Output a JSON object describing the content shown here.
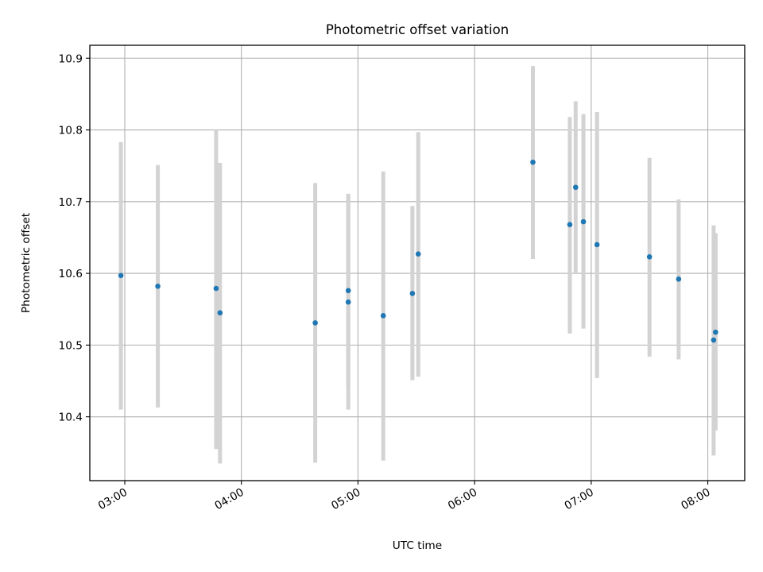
{
  "chart_data": {
    "type": "scatter",
    "title": "Photometric offset variation",
    "xlabel": "UTC time",
    "ylabel": "Photometric offset",
    "grid": true,
    "x_unit": "UTC time of day (HH:MM)",
    "xlim": [
      "02:42",
      "08:19"
    ],
    "ylim": [
      10.311,
      10.918
    ],
    "x_ticks": [
      "03:00",
      "04:00",
      "05:00",
      "06:00",
      "07:00",
      "08:00"
    ],
    "y_ticks": [
      10.4,
      10.5,
      10.6,
      10.7,
      10.8,
      10.9
    ],
    "y_tick_labels": [
      "10.4",
      "10.5",
      "10.6",
      "10.7",
      "10.8",
      "10.9"
    ],
    "marker_color": "#1f77b4",
    "errorbar_color": "#d3d3d3",
    "series": [
      {
        "points": [
          {
            "x": "02:58",
            "y": 10.597,
            "y_low": 10.41,
            "y_high": 10.783
          },
          {
            "x": "03:17",
            "y": 10.582,
            "y_low": 10.413,
            "y_high": 10.751
          },
          {
            "x": "03:47",
            "y": 10.579,
            "y_low": 10.355,
            "y_high": 10.8
          },
          {
            "x": "03:49",
            "y": 10.545,
            "y_low": 10.335,
            "y_high": 10.754
          },
          {
            "x": "04:38",
            "y": 10.531,
            "y_low": 10.336,
            "y_high": 10.726
          },
          {
            "x": "04:55",
            "y": 10.576,
            "y_low": 10.441,
            "y_high": 10.711
          },
          {
            "x": "04:55",
            "y": 10.56,
            "y_low": 10.41,
            "y_high": 10.71
          },
          {
            "x": "05:13",
            "y": 10.541,
            "y_low": 10.339,
            "y_high": 10.742
          },
          {
            "x": "05:28",
            "y": 10.572,
            "y_low": 10.451,
            "y_high": 10.694
          },
          {
            "x": "05:31",
            "y": 10.627,
            "y_low": 10.456,
            "y_high": 10.797
          },
          {
            "x": "06:30",
            "y": 10.755,
            "y_low": 10.62,
            "y_high": 10.889
          },
          {
            "x": "06:49",
            "y": 10.668,
            "y_low": 10.516,
            "y_high": 10.818
          },
          {
            "x": "06:52",
            "y": 10.72,
            "y_low": 10.6,
            "y_high": 10.84
          },
          {
            "x": "06:56",
            "y": 10.672,
            "y_low": 10.523,
            "y_high": 10.822
          },
          {
            "x": "07:03",
            "y": 10.64,
            "y_low": 10.454,
            "y_high": 10.825
          },
          {
            "x": "07:30",
            "y": 10.623,
            "y_low": 10.484,
            "y_high": 10.761
          },
          {
            "x": "07:45",
            "y": 10.592,
            "y_low": 10.48,
            "y_high": 10.703
          },
          {
            "x": "08:03",
            "y": 10.507,
            "y_low": 10.346,
            "y_high": 10.667
          },
          {
            "x": "08:04",
            "y": 10.518,
            "y_low": 10.381,
            "y_high": 10.656
          }
        ]
      }
    ]
  }
}
